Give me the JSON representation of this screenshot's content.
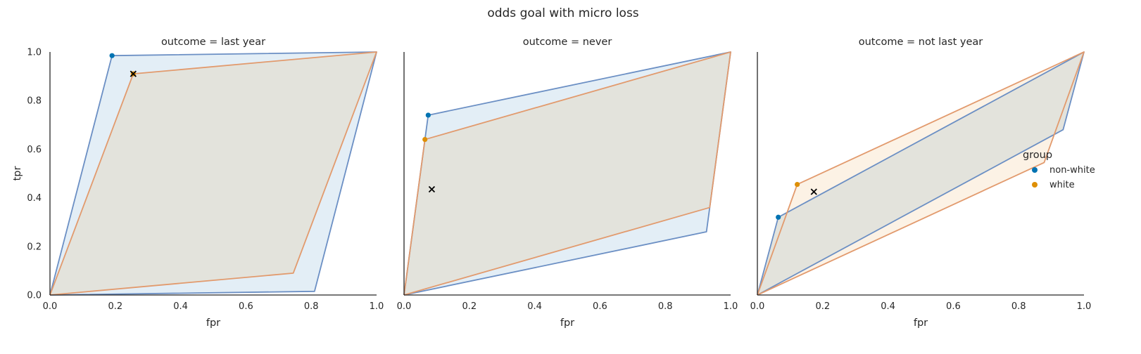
{
  "chart_data": {
    "type": "line",
    "title": "odds goal with micro loss",
    "xlabel": "fpr",
    "ylabel": "tpr",
    "xlim": [
      0,
      1
    ],
    "ylim": [
      0,
      1
    ],
    "x_ticks": [
      "0.0",
      "0.2",
      "0.4",
      "0.6",
      "0.8",
      "1.0"
    ],
    "y_ticks": [
      "0.0",
      "0.2",
      "0.4",
      "0.6",
      "0.8",
      "1.0"
    ],
    "grid": false,
    "legend": {
      "title": "group",
      "placement": "right",
      "entries": [
        {
          "label": "non-white",
          "color": "#0173b2"
        },
        {
          "label": "white",
          "color": "#de8f05"
        }
      ]
    },
    "colors": {
      "non-white-line": "#6b8fc4",
      "non-white-fill": "#e3eef6",
      "white-line": "#e29a6d",
      "white-fill": "#fcf2e5",
      "overlap-fill": "#e3e3dc",
      "diagonal": "#d3d3d3",
      "marker": "#000000"
    },
    "panels": [
      {
        "title": "outcome = last year",
        "series": [
          {
            "name": "non-white",
            "polygon": [
              [
                0,
                0
              ],
              [
                0.19,
                0.985
              ],
              [
                1,
                1
              ],
              [
                0.81,
                0.015
              ],
              [
                0,
                0
              ]
            ],
            "point": [
              0.19,
              0.985
            ]
          },
          {
            "name": "white",
            "polygon": [
              [
                0,
                0
              ],
              [
                0.255,
                0.91
              ],
              [
                1,
                1
              ],
              [
                0.745,
                0.09
              ],
              [
                0,
                0
              ]
            ],
            "point": [
              0.255,
              0.91
            ]
          }
        ],
        "cross": [
          0.255,
          0.91
        ],
        "fill_order": [
          "non-white",
          "white"
        ]
      },
      {
        "title": "outcome = never",
        "series": [
          {
            "name": "non-white",
            "polygon": [
              [
                0,
                0
              ],
              [
                0.074,
                0.74
              ],
              [
                1,
                1
              ],
              [
                0.926,
                0.26
              ],
              [
                0,
                0
              ]
            ],
            "point": [
              0.074,
              0.74
            ]
          },
          {
            "name": "white",
            "polygon": [
              [
                0,
                0
              ],
              [
                0.064,
                0.64
              ],
              [
                1,
                1
              ],
              [
                0.936,
                0.36
              ],
              [
                0,
                0
              ]
            ],
            "point": [
              0.064,
              0.64
            ]
          }
        ],
        "cross": [
          0.085,
          0.435
        ],
        "fill_order": [
          "non-white",
          "white"
        ]
      },
      {
        "title": "outcome = not last year",
        "series": [
          {
            "name": "non-white",
            "polygon": [
              [
                0,
                0
              ],
              [
                0.064,
                0.32
              ],
              [
                1,
                1
              ],
              [
                0.936,
                0.68
              ],
              [
                0,
                0
              ]
            ],
            "point": [
              0.064,
              0.32
            ]
          },
          {
            "name": "white",
            "polygon": [
              [
                0,
                0
              ],
              [
                0.122,
                0.455
              ],
              [
                1,
                1
              ],
              [
                0.878,
                0.545
              ],
              [
                0,
                0
              ]
            ],
            "point": [
              0.122,
              0.455
            ]
          }
        ],
        "cross": [
          0.173,
          0.425
        ],
        "fill_order": [
          "white",
          "non-white"
        ]
      }
    ]
  }
}
